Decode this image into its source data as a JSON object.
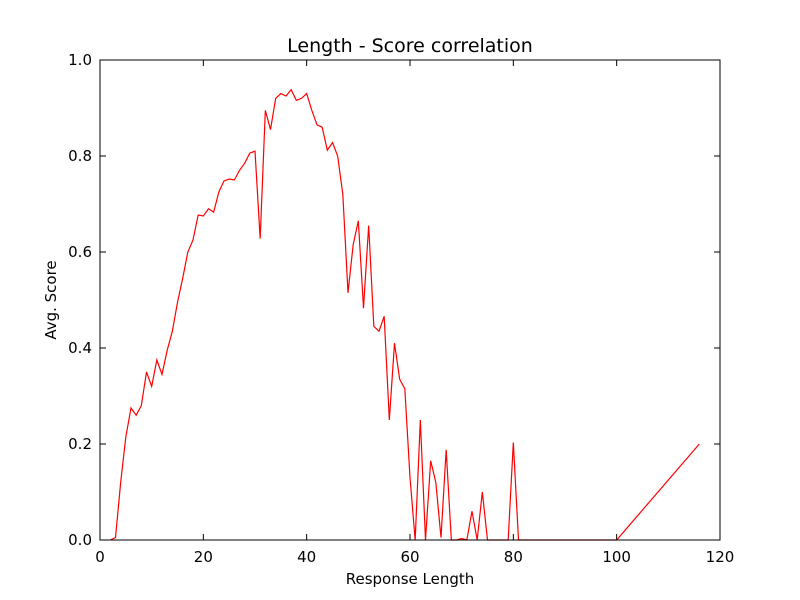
{
  "chart_data": {
    "type": "line",
    "title": "Length - Score correlation",
    "xlabel": "Response Length",
    "ylabel": "Avg. Score",
    "xlim": [
      0,
      120
    ],
    "ylim": [
      0.0,
      1.0
    ],
    "xticks": [
      0,
      20,
      40,
      60,
      80,
      100,
      120
    ],
    "xtick_labels": [
      "0",
      "20",
      "40",
      "60",
      "80",
      "100",
      "120"
    ],
    "yticks": [
      0.0,
      0.2,
      0.4,
      0.6,
      0.8,
      1.0
    ],
    "ytick_labels": [
      "0.0",
      "0.2",
      "0.4",
      "0.6",
      "0.8",
      "1.0"
    ],
    "grid": false,
    "series": [
      {
        "color": "#ff0000",
        "x": [
          2,
          3,
          4,
          5,
          6,
          7,
          8,
          9,
          10,
          11,
          12,
          13,
          14,
          15,
          16,
          17,
          18,
          19,
          20,
          21,
          22,
          23,
          24,
          25,
          26,
          27,
          28,
          29,
          30,
          31,
          32,
          33,
          34,
          35,
          36,
          37,
          38,
          39,
          40,
          41,
          42,
          43,
          44,
          45,
          46,
          47,
          48,
          49,
          50,
          51,
          52,
          53,
          54,
          55,
          56,
          57,
          58,
          59,
          60,
          61,
          62,
          63,
          64,
          65,
          66,
          67,
          68,
          69,
          70,
          71,
          72,
          73,
          74,
          75,
          76,
          77,
          78,
          79,
          80,
          81,
          100,
          116
        ],
        "y": [
          0.0,
          0.005,
          0.12,
          0.215,
          0.275,
          0.26,
          0.28,
          0.35,
          0.32,
          0.375,
          0.345,
          0.395,
          0.435,
          0.495,
          0.545,
          0.6,
          0.625,
          0.677,
          0.675,
          0.69,
          0.683,
          0.725,
          0.748,
          0.752,
          0.75,
          0.77,
          0.785,
          0.806,
          0.81,
          0.628,
          0.895,
          0.855,
          0.92,
          0.93,
          0.925,
          0.938,
          0.916,
          0.92,
          0.93,
          0.895,
          0.865,
          0.86,
          0.812,
          0.828,
          0.8,
          0.72,
          0.515,
          0.615,
          0.665,
          0.483,
          0.655,
          0.445,
          0.435,
          0.466,
          0.25,
          0.41,
          0.335,
          0.315,
          0.13,
          0.0,
          0.25,
          0.0,
          0.165,
          0.12,
          0.005,
          0.188,
          0.0,
          0.0,
          0.003,
          0.0,
          0.06,
          0.0,
          0.1,
          0.0,
          0.0,
          0.0,
          0.0,
          0.0,
          0.203,
          0.0,
          0.0,
          0.2
        ]
      }
    ]
  }
}
